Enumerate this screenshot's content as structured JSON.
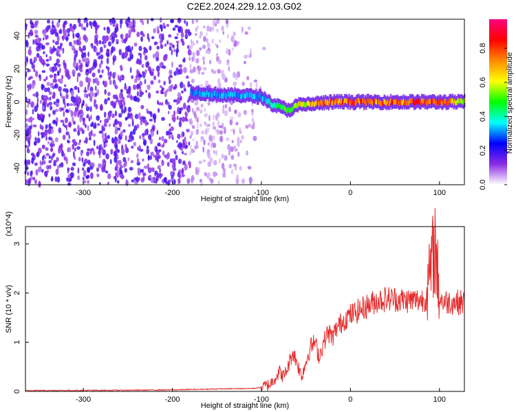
{
  "title": "C2E2.2024.229.12.03.G02",
  "chart_data": [
    {
      "type": "heatmap",
      "name": "spectrogram",
      "xlabel": "Height of straight line (km)",
      "ylabel": "Frequency (Hz)",
      "xlim": [
        -365,
        128
      ],
      "ylim": [
        -50,
        50
      ],
      "x_ticks": [
        -300,
        -200,
        -100,
        0,
        100
      ],
      "y_ticks": [
        -40,
        -20,
        0,
        20,
        40
      ],
      "colorbar": {
        "label": "Normalized spectral amplitude",
        "range": [
          0.0,
          0.97
        ],
        "ticks": [
          0.0,
          0.2,
          0.4,
          0.6,
          0.8
        ],
        "tick_labels": [
          "0.0",
          "0.2",
          "0.4",
          "0.6",
          "0.8"
        ],
        "colors": [
          "#ffffff",
          "#8a2be2",
          "#0000ff",
          "#00ffff",
          "#00ff00",
          "#ffff00",
          "#ff8800",
          "#ff0000",
          "#ff0080"
        ]
      },
      "signal_track": {
        "x": [
          -180,
          -160,
          -140,
          -120,
          -100,
          -90,
          -80,
          -70,
          -60,
          -40,
          -20,
          0,
          20,
          50,
          80,
          100,
          128
        ],
        "freq": [
          6,
          5,
          4,
          4,
          3,
          -1,
          -3,
          -5,
          -2,
          -1,
          0,
          0,
          0,
          0,
          0,
          0,
          0
        ],
        "amplitude": [
          0.3,
          0.35,
          0.35,
          0.35,
          0.35,
          0.45,
          0.5,
          0.55,
          0.6,
          0.75,
          0.8,
          0.85,
          0.8,
          0.8,
          0.85,
          0.85,
          0.6
        ]
      }
    },
    {
      "type": "line",
      "name": "snr",
      "xlabel": "Height of straight line (km)",
      "ylabel": "SNR (10 * v/v)",
      "y_multiplier": "(x10^4)",
      "xlim": [
        -365,
        128
      ],
      "ylim": [
        0,
        3.35
      ],
      "x_ticks": [
        -300,
        -200,
        -100,
        0,
        100
      ],
      "y_ticks": [
        0,
        1,
        2,
        3
      ],
      "color": "#e52b2b",
      "series": [
        {
          "x": [
            -365,
            -300,
            -200,
            -150,
            -110,
            -100,
            -90,
            -80,
            -75,
            -70,
            -65,
            -60,
            -55,
            -50,
            -45,
            -40,
            -35,
            -30,
            -25,
            -20,
            -15,
            -10,
            -5,
            0,
            10,
            20,
            30,
            40,
            50,
            60,
            70,
            80,
            85,
            90,
            95,
            100,
            105,
            110,
            128
          ],
          "y": [
            0.02,
            0.02,
            0.03,
            0.05,
            0.06,
            0.08,
            0.15,
            0.4,
            0.3,
            0.5,
            0.8,
            0.6,
            0.3,
            0.6,
            0.9,
            1.0,
            0.7,
            1.0,
            1.2,
            1.1,
            1.3,
            1.4,
            1.5,
            1.55,
            1.65,
            1.75,
            1.85,
            1.88,
            1.88,
            1.85,
            1.85,
            1.86,
            1.9,
            2.4,
            3.0,
            1.9,
            1.82,
            1.82,
            1.81
          ]
        }
      ]
    }
  ]
}
